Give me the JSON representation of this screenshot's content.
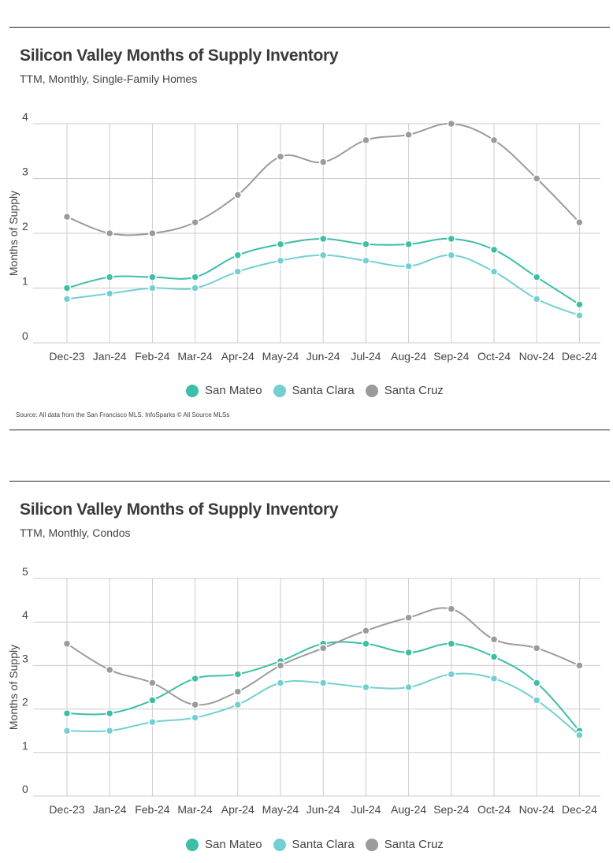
{
  "colors": {
    "san_mateo": "#3dbea6",
    "santa_clara": "#73d0d2",
    "santa_cruz": "#9b9b9b",
    "grid": "#cccccc"
  },
  "chart_data": [
    {
      "type": "line",
      "title": "Silicon Valley Months of Supply Inventory",
      "subtitle": "TTM, Monthly, Single-Family Homes",
      "ylabel": "Months of Supply",
      "xlabel": "",
      "ylim": [
        0,
        4
      ],
      "yticks": [
        0,
        1,
        2,
        3,
        4
      ],
      "categories": [
        "Dec-23",
        "Jan-24",
        "Feb-24",
        "Mar-24",
        "Apr-24",
        "May-24",
        "Jun-24",
        "Jul-24",
        "Aug-24",
        "Sep-24",
        "Oct-24",
        "Nov-24",
        "Dec-24"
      ],
      "series": [
        {
          "name": "San Mateo",
          "color": "#3dbea6",
          "values": [
            1.0,
            1.2,
            1.2,
            1.2,
            1.6,
            1.8,
            1.9,
            1.8,
            1.8,
            1.9,
            1.7,
            1.2,
            0.7
          ]
        },
        {
          "name": "Santa Clara",
          "color": "#73d0d2",
          "values": [
            0.8,
            0.9,
            1.0,
            1.0,
            1.3,
            1.5,
            1.6,
            1.5,
            1.4,
            1.6,
            1.3,
            0.8,
            0.5
          ]
        },
        {
          "name": "Santa Cruz",
          "color": "#9b9b9b",
          "values": [
            2.3,
            2.0,
            2.0,
            2.2,
            2.7,
            3.4,
            3.3,
            3.7,
            3.8,
            4.0,
            3.7,
            3.0,
            2.2
          ]
        }
      ],
      "legend": "bottom-center",
      "grid": true,
      "source": "Source:  All data from the San Francisco MLS. InfoSparks © All Source MLSs"
    },
    {
      "type": "line",
      "title": "Silicon Valley Months of Supply Inventory",
      "subtitle": "TTM, Monthly, Condos",
      "ylabel": "Months of Supply",
      "xlabel": "",
      "ylim": [
        0,
        5
      ],
      "yticks": [
        0,
        1,
        2,
        3,
        4,
        5
      ],
      "categories": [
        "Dec-23",
        "Jan-24",
        "Feb-24",
        "Mar-24",
        "Apr-24",
        "May-24",
        "Jun-24",
        "Jul-24",
        "Aug-24",
        "Sep-24",
        "Oct-24",
        "Nov-24",
        "Dec-24"
      ],
      "series": [
        {
          "name": "San Mateo",
          "color": "#3dbea6",
          "values": [
            1.9,
            1.9,
            2.2,
            2.7,
            2.8,
            3.1,
            3.5,
            3.5,
            3.3,
            3.5,
            3.2,
            2.6,
            1.5
          ]
        },
        {
          "name": "Santa Clara",
          "color": "#73d0d2",
          "values": [
            1.5,
            1.5,
            1.7,
            1.8,
            2.1,
            2.6,
            2.6,
            2.5,
            2.5,
            2.8,
            2.7,
            2.2,
            1.4
          ]
        },
        {
          "name": "Santa Cruz",
          "color": "#9b9b9b",
          "values": [
            3.5,
            2.9,
            2.6,
            2.1,
            2.4,
            3.0,
            3.4,
            3.8,
            4.1,
            4.3,
            3.6,
            3.4,
            3.0
          ]
        }
      ],
      "legend": "bottom-center",
      "grid": true
    }
  ]
}
